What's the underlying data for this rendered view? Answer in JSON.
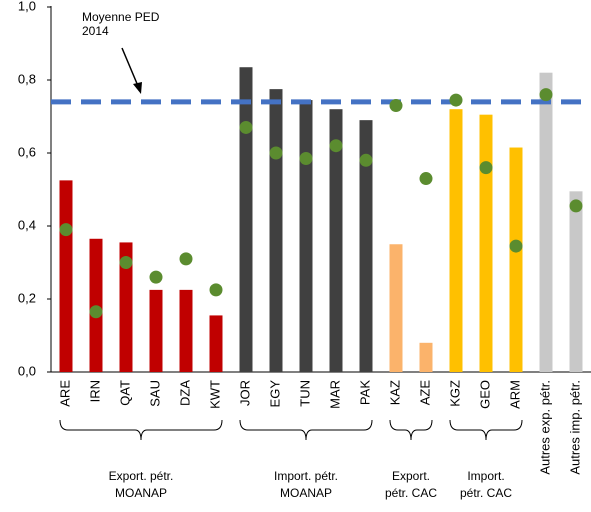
{
  "chart_data": {
    "type": "bar",
    "groups": [
      {
        "label": [
          "Export. pétr.",
          "MOANAP"
        ],
        "categories": [
          "ARE",
          "IRN",
          "QAT",
          "SAU",
          "DZA",
          "KWT"
        ]
      },
      {
        "label": [
          "Import. pétr.",
          "MOANAP"
        ],
        "categories": [
          "JOR",
          "EGY",
          "TUN",
          "MAR",
          "PAK"
        ]
      },
      {
        "label": [
          "Export.",
          "pétr. CAC"
        ],
        "categories": [
          "KAZ",
          "AZE"
        ]
      },
      {
        "label": [
          "Import.",
          "pétr. CAC"
        ],
        "categories": [
          "KGZ",
          "GEO",
          "ARM"
        ]
      },
      {
        "categories": [
          "Autres exp. pétr.",
          "Autres imp. pétr."
        ]
      }
    ],
    "series": [
      {
        "type": "bar",
        "colors": [
          "#c00000",
          "#c00000",
          "#c00000",
          "#c00000",
          "#c00000",
          "#c00000",
          "#404040",
          "#404040",
          "#404040",
          "#404040",
          "#404040",
          "#fbb36b",
          "#fbb36b",
          "#ffc000",
          "#ffc000",
          "#ffc000",
          "#c8c8c8",
          "#c8c8c8"
        ],
        "values": [
          0.525,
          0.365,
          0.355,
          0.225,
          0.225,
          0.155,
          0.835,
          0.775,
          0.745,
          0.72,
          0.69,
          0.35,
          0.08,
          0.72,
          0.705,
          0.615,
          0.82,
          0.495
        ]
      },
      {
        "type": "scatter",
        "color": "#5b8c2f",
        "values": [
          0.39,
          0.165,
          0.3,
          0.26,
          0.31,
          0.225,
          0.67,
          0.6,
          0.585,
          0.62,
          0.58,
          0.73,
          0.53,
          0.745,
          0.56,
          0.345,
          0.76,
          0.455
        ]
      }
    ],
    "reference_line": {
      "value": 0.74,
      "color": "#4472c4",
      "label": [
        "Moyenne PED",
        "2014"
      ]
    },
    "ylim": [
      0,
      1.0
    ],
    "yticks": [
      {
        "value": 0,
        "label": "0,0"
      },
      {
        "value": 0.2,
        "label": "0,2"
      },
      {
        "value": 0.4,
        "label": "0,4"
      },
      {
        "value": 0.6,
        "label": "0,6"
      },
      {
        "value": 0.8,
        "label": "0,8"
      },
      {
        "value": 1.0,
        "label": "1,0"
      }
    ]
  }
}
